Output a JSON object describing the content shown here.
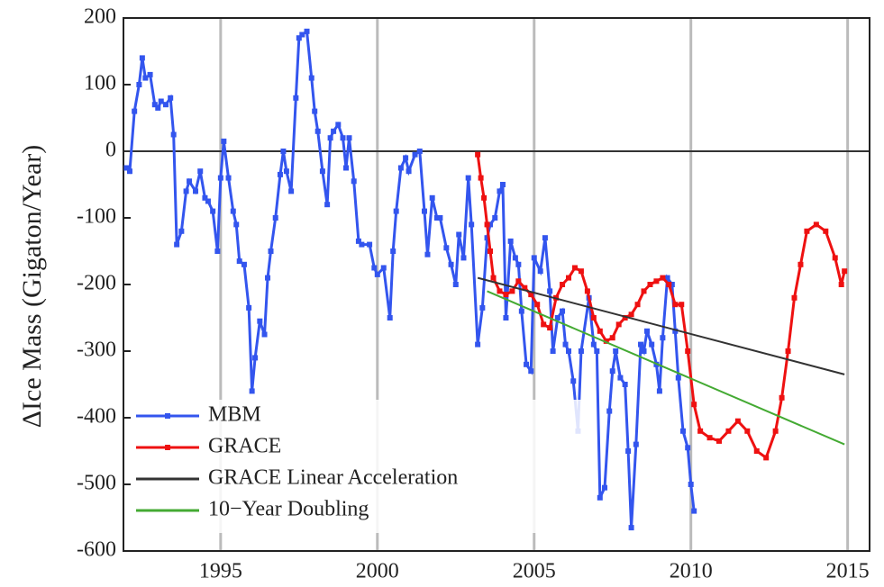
{
  "chart_data": {
    "type": "line",
    "y_label": "ΔIce Mass (Gigaton/Year)",
    "xlim": [
      1991.9,
      2015.7
    ],
    "ylim": [
      -600,
      200
    ],
    "xticks": [
      1995,
      2000,
      2005,
      2010,
      2015
    ],
    "yticks": [
      -600,
      -500,
      -400,
      -300,
      -200,
      -100,
      0,
      100,
      200
    ],
    "grid": true,
    "legend": "lower left",
    "series": [
      {
        "name": "MBM",
        "color": "#3355ee",
        "marker": true,
        "x": [
          1992.0,
          1992.1,
          1992.25,
          1992.4,
          1992.5,
          1992.6,
          1992.75,
          1992.9,
          1993.0,
          1993.1,
          1993.25,
          1993.4,
          1993.5,
          1993.6,
          1993.75,
          1993.9,
          1994.0,
          1994.2,
          1994.35,
          1994.5,
          1994.6,
          1994.75,
          1994.9,
          1995.0,
          1995.1,
          1995.25,
          1995.4,
          1995.5,
          1995.6,
          1995.75,
          1995.9,
          1996.0,
          1996.1,
          1996.25,
          1996.4,
          1996.5,
          1996.6,
          1996.75,
          1996.9,
          1997.0,
          1997.1,
          1997.25,
          1997.4,
          1997.5,
          1997.6,
          1997.75,
          1997.9,
          1998.0,
          1998.1,
          1998.25,
          1998.4,
          1998.5,
          1998.6,
          1998.75,
          1998.9,
          1999.0,
          1999.1,
          1999.25,
          1999.4,
          1999.5,
          1999.75,
          1999.9,
          2000.0,
          2000.2,
          2000.4,
          2000.5,
          2000.6,
          2000.75,
          2000.9,
          2001.0,
          2001.2,
          2001.35,
          2001.5,
          2001.6,
          2001.75,
          2001.9,
          2002.0,
          2002.2,
          2002.35,
          2002.5,
          2002.6,
          2002.75,
          2002.9,
          2003.0,
          2003.2,
          2003.35,
          2003.5,
          2003.6,
          2003.75,
          2003.9,
          2004.0,
          2004.1,
          2004.25,
          2004.4,
          2004.5,
          2004.6,
          2004.75,
          2004.9,
          2005.0,
          2005.2,
          2005.35,
          2005.5,
          2005.6,
          2005.75,
          2005.9,
          2006.0,
          2006.1,
          2006.25,
          2006.4,
          2006.5,
          2006.75,
          2006.9,
          2007.0,
          2007.1,
          2007.25,
          2007.4,
          2007.5,
          2007.6,
          2007.75,
          2007.9,
          2008.0,
          2008.1,
          2008.25,
          2008.4,
          2008.5,
          2008.6,
          2008.75,
          2008.9,
          2009.0,
          2009.1,
          2009.25,
          2009.4,
          2009.5,
          2009.6,
          2009.75,
          2009.9,
          2010.0,
          2010.1
        ],
        "values": [
          -25,
          -30,
          60,
          100,
          140,
          110,
          115,
          70,
          65,
          75,
          70,
          80,
          25,
          -140,
          -120,
          -60,
          -45,
          -60,
          -30,
          -70,
          -75,
          -90,
          -150,
          -40,
          15,
          -40,
          -90,
          -110,
          -165,
          -170,
          -235,
          -360,
          -310,
          -255,
          -275,
          -190,
          -150,
          -100,
          -35,
          0,
          -30,
          -60,
          80,
          170,
          175,
          180,
          110,
          60,
          30,
          -30,
          -80,
          20,
          30,
          40,
          20,
          -25,
          20,
          -45,
          -135,
          -140,
          -140,
          -175,
          -185,
          -175,
          -250,
          -150,
          -90,
          -25,
          -10,
          -30,
          -5,
          0,
          -90,
          -155,
          -70,
          -100,
          -100,
          -145,
          -170,
          -200,
          -125,
          -160,
          -40,
          -110,
          -290,
          -235,
          -130,
          -110,
          -100,
          -60,
          -50,
          -250,
          -135,
          -160,
          -170,
          -240,
          -320,
          -330,
          -160,
          -180,
          -130,
          -210,
          -300,
          -250,
          -240,
          -290,
          -300,
          -345,
          -420,
          -300,
          -220,
          -290,
          -300,
          -520,
          -505,
          -390,
          -330,
          -300,
          -340,
          -350,
          -450,
          -565,
          -440,
          -290,
          -300,
          -270,
          -290,
          -320,
          -360,
          -280,
          -190,
          -200,
          -270,
          -340,
          -420,
          -445,
          -500,
          -540
        ]
      },
      {
        "name": "GRACE",
        "color": "#ee1111",
        "marker": true,
        "x": [
          2003.2,
          2003.3,
          2003.4,
          2003.5,
          2003.6,
          2003.7,
          2003.9,
          2004.1,
          2004.3,
          2004.5,
          2004.7,
          2004.9,
          2005.1,
          2005.3,
          2005.5,
          2005.7,
          2005.9,
          2006.1,
          2006.3,
          2006.5,
          2006.7,
          2006.9,
          2007.1,
          2007.3,
          2007.5,
          2007.7,
          2007.9,
          2008.1,
          2008.3,
          2008.5,
          2008.7,
          2008.9,
          2009.1,
          2009.3,
          2009.5,
          2009.7,
          2009.9,
          2010.1,
          2010.3,
          2010.6,
          2010.9,
          2011.2,
          2011.5,
          2011.8,
          2012.1,
          2012.4,
          2012.7,
          2012.9,
          2013.1,
          2013.3,
          2013.5,
          2013.7,
          2014.0,
          2014.3,
          2014.6,
          2014.8,
          2014.9
        ],
        "values": [
          -5,
          -40,
          -70,
          -110,
          -150,
          -190,
          -210,
          -215,
          -210,
          -195,
          -205,
          -215,
          -230,
          -260,
          -265,
          -220,
          -200,
          -190,
          -175,
          -180,
          -210,
          -250,
          -270,
          -285,
          -280,
          -260,
          -250,
          -245,
          -230,
          -210,
          -200,
          -195,
          -190,
          -200,
          -230,
          -230,
          -300,
          -380,
          -420,
          -430,
          -435,
          -420,
          -405,
          -420,
          -450,
          -460,
          -420,
          -370,
          -300,
          -220,
          -170,
          -120,
          -110,
          -120,
          -160,
          -200,
          -180
        ]
      },
      {
        "name": "GRACE Linear Acceleration",
        "color": "#333333",
        "marker": false,
        "x": [
          2003.2,
          2014.9
        ],
        "values": [
          -190,
          -335
        ]
      },
      {
        "name": "10−Year Doubling",
        "color": "#44aa33",
        "marker": false,
        "x": [
          2003.5,
          2014.9
        ],
        "values": [
          -210,
          -440
        ]
      }
    ]
  }
}
